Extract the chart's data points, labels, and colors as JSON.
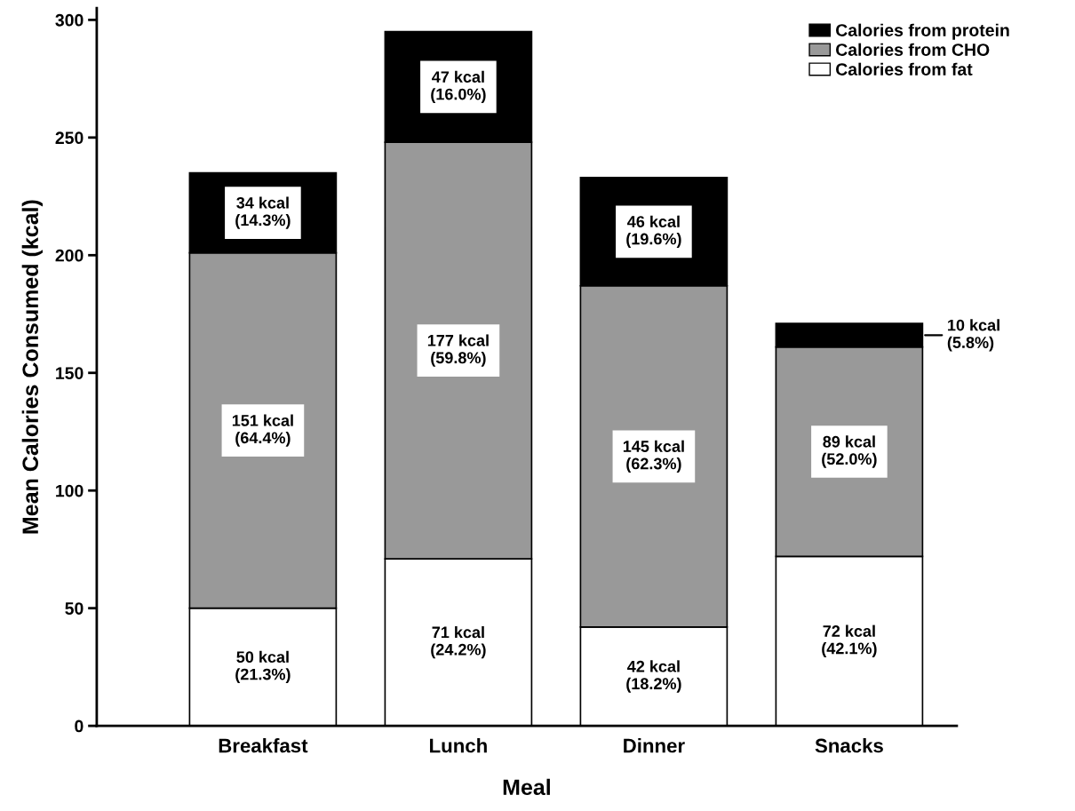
{
  "chart_data": {
    "type": "bar",
    "stacked": true,
    "xlabel": "Meal",
    "ylabel": "Mean Calories Consumed (kcal)",
    "categories": [
      "Breakfast",
      "Lunch",
      "Dinner",
      "Snacks"
    ],
    "series": [
      {
        "name": "Calories from fat",
        "color": "#ffffff",
        "values": [
          50,
          71,
          42,
          72
        ],
        "value_labels": [
          "50 kcal\n(21.3%)",
          "71 kcal\n(24.2%)",
          "42 kcal\n(18.2%)",
          "72 kcal\n(42.1%)"
        ]
      },
      {
        "name": "Calories from CHO",
        "color": "#999999",
        "values": [
          151,
          177,
          145,
          89
        ],
        "value_labels": [
          "151 kcal\n(64.4%)",
          "177 kcal\n(59.8%)",
          "145 kcal\n(62.3%)",
          "89 kcal\n(52.0%)"
        ]
      },
      {
        "name": "Calories from protein",
        "color": "#000000",
        "values": [
          34,
          47,
          46,
          10
        ],
        "value_labels": [
          "34 kcal\n(14.3%)",
          "47 kcal\n(16.0%)",
          "46 kcal\n(19.6%)",
          "10 kcal\n(5.8%)"
        ]
      }
    ],
    "ylim": [
      0,
      305
    ],
    "yticks": [
      0,
      50,
      100,
      150,
      200,
      250,
      300
    ],
    "grid": false,
    "legend": "top right"
  }
}
